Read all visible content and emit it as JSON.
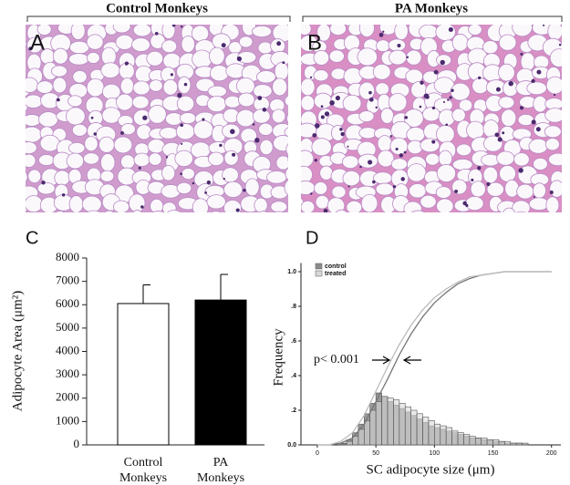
{
  "panels": [
    {
      "label": "A",
      "title": "Control Monkeys"
    },
    {
      "label": "B",
      "title": "PA Monkeys"
    }
  ],
  "chart_data": [
    {
      "type": "bar",
      "panel": "C",
      "ylabel": "Adipocyte Area (μm²)",
      "categories": [
        "Control Monkeys",
        "PA Monkeys"
      ],
      "values": [
        6050,
        6200
      ],
      "errors": [
        800,
        1100
      ],
      "colors": [
        "#ffffff",
        "#000000"
      ],
      "ylim": [
        0,
        8000
      ],
      "yticks": [
        0,
        1000,
        2000,
        3000,
        4000,
        5000,
        6000,
        7000,
        8000
      ]
    },
    {
      "type": "histogram",
      "panel": "D",
      "xlabel": "SC adipocyte size (μm)",
      "ylabel": "Frequency",
      "annotation": "p< 0.001",
      "legend": "top-left",
      "bins": [
        20,
        25,
        30,
        35,
        40,
        45,
        50,
        55,
        60,
        65,
        70,
        75,
        80,
        85,
        90,
        95,
        100,
        105,
        110,
        115,
        120,
        125,
        130,
        135,
        140,
        145,
        150,
        155,
        160,
        165,
        170,
        175,
        180
      ],
      "series": [
        {
          "name": "control",
          "color": "#8c8c8c",
          "line_color": "#777777",
          "values": [
            0.01,
            0.03,
            0.07,
            0.12,
            0.18,
            0.24,
            0.3,
            0.28,
            0.25,
            0.23,
            0.21,
            0.19,
            0.17,
            0.15,
            0.13,
            0.11,
            0.1,
            0.09,
            0.08,
            0.07,
            0.06,
            0.05,
            0.04,
            0.04,
            0.03,
            0.03,
            0.02,
            0.02,
            0.01,
            0.01,
            0.01,
            0.005
          ],
          "cdf": [
            0,
            0,
            0.01,
            0.04,
            0.12,
            0.25,
            0.38,
            0.52,
            0.64,
            0.74,
            0.82,
            0.88,
            0.93,
            0.96,
            0.98,
            0.99,
            1,
            1,
            1,
            1,
            1
          ]
        },
        {
          "name": "treated",
          "color": "#d9d9d9",
          "line_color": "#bbbbbb",
          "values": [
            0.005,
            0.02,
            0.05,
            0.09,
            0.14,
            0.2,
            0.25,
            0.28,
            0.27,
            0.26,
            0.24,
            0.22,
            0.2,
            0.18,
            0.16,
            0.14,
            0.12,
            0.11,
            0.1,
            0.08,
            0.07,
            0.06,
            0.05,
            0.04,
            0.04,
            0.03,
            0.03,
            0.02,
            0.02,
            0.01,
            0.01,
            0.01
          ],
          "cdf": [
            0,
            0,
            0.02,
            0.07,
            0.17,
            0.31,
            0.45,
            0.58,
            0.69,
            0.78,
            0.85,
            0.9,
            0.94,
            0.97,
            0.98,
            0.99,
            1,
            1,
            1,
            1,
            1
          ]
        }
      ],
      "cdf_x": [
        0,
        10,
        20,
        30,
        40,
        50,
        60,
        70,
        80,
        90,
        100,
        110,
        120,
        130,
        140,
        150,
        160,
        170,
        180,
        190,
        200
      ],
      "xlim": [
        -14,
        208
      ],
      "ylim": [
        0,
        1.05
      ],
      "xticks": [
        0,
        50,
        100,
        150,
        200
      ],
      "yticks": [
        {
          "value": 0,
          "label": "0.0"
        },
        {
          "value": 0.2,
          "label": ".2"
        },
        {
          "value": 0.4,
          "label": ".4"
        },
        {
          "value": 0.6,
          "label": ".6"
        },
        {
          "value": 0.8,
          "label": ".8"
        },
        {
          "value": 1,
          "label": "1.0"
        }
      ]
    }
  ]
}
